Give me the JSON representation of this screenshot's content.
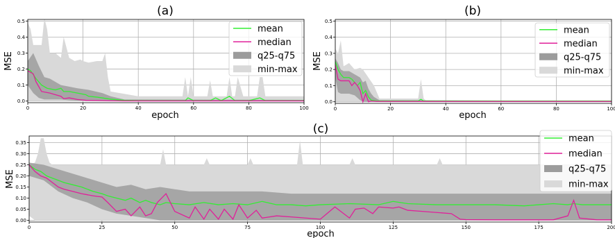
{
  "chart_data": [
    {
      "type": "line",
      "title": "(a)",
      "xlabel": "epoch",
      "ylabel": "MSE",
      "xlim": [
        0,
        100
      ],
      "ylim": [
        -0.01,
        0.51
      ],
      "xticks": [
        0,
        20,
        40,
        60,
        80,
        100
      ],
      "yticks": [
        0.0,
        0.1,
        0.2,
        0.3,
        0.4,
        0.5
      ],
      "ytick_labels": [
        "0.0",
        "0.1",
        "0.2",
        "0.3",
        "0.4",
        "0.5"
      ],
      "grid": true,
      "legend_position": "top-right",
      "legend": [
        "mean",
        "median",
        "q25-q75",
        "min-max"
      ],
      "series": [
        {
          "name": "mean",
          "color": "#33ee33",
          "x": [
            0,
            1,
            3,
            5,
            7,
            10,
            12,
            13,
            15,
            18,
            21,
            22,
            25,
            30,
            35,
            40,
            57,
            58,
            60,
            62,
            66,
            68,
            70,
            73,
            75,
            77,
            80,
            84,
            86,
            90,
            100
          ],
          "y": [
            0.2,
            0.19,
            0.14,
            0.1,
            0.08,
            0.07,
            0.08,
            0.06,
            0.06,
            0.05,
            0.04,
            0.03,
            0.025,
            0.012,
            0.005,
            0.003,
            0.003,
            0.02,
            0.003,
            0.003,
            0.003,
            0.02,
            0.003,
            0.03,
            0.003,
            0.003,
            0.003,
            0.02,
            0.003,
            0.003,
            0.003
          ]
        },
        {
          "name": "median",
          "color": "#e0209a",
          "x": [
            0,
            2,
            3,
            5,
            8,
            10,
            12,
            13,
            15,
            18,
            21,
            25,
            30,
            35,
            100
          ],
          "y": [
            0.19,
            0.17,
            0.12,
            0.06,
            0.05,
            0.04,
            0.03,
            0.015,
            0.02,
            0.01,
            0.005,
            0.004,
            0.002,
            0.001,
            0.001
          ]
        }
      ],
      "band_q25_q75": {
        "name": "q25-q75",
        "color": "#9c9c9c",
        "x": [
          0,
          2,
          4,
          6,
          8,
          10,
          12,
          15,
          18,
          22,
          27,
          30,
          35,
          100
        ],
        "lower": [
          0.1,
          0.05,
          0.02,
          0.01,
          0.01,
          0.01,
          0.01,
          0.005,
          0.003,
          0.003,
          0.002,
          0.002,
          0.001,
          0.0
        ],
        "upper": [
          0.25,
          0.3,
          0.22,
          0.15,
          0.14,
          0.12,
          0.1,
          0.09,
          0.08,
          0.07,
          0.05,
          0.03,
          0.01,
          0.008
        ]
      },
      "band_min_max": {
        "name": "min-max",
        "color": "#d9d9d9",
        "x": [
          0,
          1,
          2,
          5,
          6,
          7,
          8,
          10,
          12,
          13,
          15,
          17,
          19,
          20,
          22,
          25,
          27,
          28,
          29,
          30,
          40,
          56,
          57,
          58,
          59,
          60,
          61,
          65,
          66,
          67,
          68,
          70,
          72,
          73,
          74,
          75,
          76,
          78,
          82,
          83,
          84,
          85,
          86,
          100
        ],
        "lower": [
          0,
          0,
          0,
          0,
          0,
          0,
          0,
          0,
          0,
          0,
          0,
          0,
          0,
          0,
          0,
          0,
          0,
          0,
          0,
          0,
          0,
          0,
          0,
          0,
          0,
          0,
          0,
          0,
          0,
          0,
          0,
          0,
          0,
          0,
          0,
          0,
          0,
          0,
          0,
          0,
          0,
          0,
          0,
          0
        ],
        "upper": [
          0.49,
          0.45,
          0.35,
          0.35,
          0.52,
          0.45,
          0.3,
          0.3,
          0.27,
          0.4,
          0.27,
          0.25,
          0.26,
          0.25,
          0.24,
          0.25,
          0.25,
          0.3,
          0.15,
          0.06,
          0.03,
          0.03,
          0.15,
          0.03,
          0.15,
          0.03,
          0.03,
          0.03,
          0.13,
          0.03,
          0.03,
          0.03,
          0.03,
          0.15,
          0.03,
          0.03,
          0.15,
          0.03,
          0.03,
          0.03,
          0.15,
          0.15,
          0.03,
          0.03
        ]
      }
    },
    {
      "type": "line",
      "title": "(b)",
      "xlabel": "epoch",
      "ylabel": "MSE",
      "xlim": [
        0,
        100
      ],
      "ylim": [
        -0.01,
        0.51
      ],
      "xticks": [
        0,
        20,
        40,
        60,
        80,
        100
      ],
      "yticks": [
        0.0,
        0.1,
        0.2,
        0.3,
        0.4,
        0.5
      ],
      "ytick_labels": [
        "0.0",
        "0.1",
        "0.2",
        "0.3",
        "0.4",
        "0.5"
      ],
      "grid": true,
      "legend_position": "top-right",
      "legend": [
        "mean",
        "median",
        "q25-q75",
        "min-max"
      ],
      "series": [
        {
          "name": "mean",
          "color": "#33ee33",
          "x": [
            0,
            1,
            2,
            3,
            5,
            6,
            7,
            8,
            9,
            10,
            11,
            12,
            13,
            15,
            30,
            31,
            32,
            33,
            100
          ],
          "y": [
            0.25,
            0.2,
            0.17,
            0.15,
            0.15,
            0.14,
            0.12,
            0.1,
            0.12,
            0.05,
            0.07,
            0.03,
            0.01,
            0.005,
            0.005,
            0.015,
            0.005,
            0.005,
            0.005
          ]
        },
        {
          "name": "median",
          "color": "#e0209a",
          "x": [
            0,
            1,
            2,
            3,
            5,
            6,
            7,
            8,
            9,
            10,
            11,
            12,
            13,
            15,
            100
          ],
          "y": [
            0.23,
            0.14,
            0.13,
            0.13,
            0.13,
            0.1,
            0.12,
            0.1,
            0.07,
            0.0,
            0.05,
            0.0,
            0.005,
            0.002,
            0.002
          ]
        }
      ],
      "band_q25_q75": {
        "name": "q25-q75",
        "color": "#9c9c9c",
        "x": [
          0,
          1,
          2,
          3,
          5,
          7,
          9,
          10,
          11,
          12,
          13,
          14,
          16,
          100
        ],
        "lower": [
          0.15,
          0.06,
          0.05,
          0.05,
          0.05,
          0.04,
          0.01,
          0.0,
          0.0,
          0.0,
          0.0,
          0.0,
          0.0,
          0.0
        ],
        "upper": [
          0.27,
          0.24,
          0.2,
          0.19,
          0.19,
          0.17,
          0.15,
          0.12,
          0.13,
          0.08,
          0.05,
          0.03,
          0.01,
          0.005
        ]
      },
      "band_min_max": {
        "name": "min-max",
        "color": "#d9d9d9",
        "x": [
          0,
          1,
          2,
          3,
          5,
          7,
          9,
          10,
          12,
          14,
          16,
          30,
          31,
          32,
          33,
          100
        ],
        "lower": [
          0,
          0,
          0,
          0,
          0,
          0,
          0,
          0,
          0,
          0,
          0,
          0,
          0,
          0,
          0,
          0
        ],
        "upper": [
          0.33,
          0.3,
          0.38,
          0.22,
          0.24,
          0.2,
          0.21,
          0.2,
          0.15,
          0.1,
          0.02,
          0.02,
          0.14,
          0.02,
          0.005,
          0.005
        ]
      }
    },
    {
      "type": "line",
      "title": "(c)",
      "xlabel": "epoch",
      "ylabel": "MSE",
      "xlim": [
        0,
        200
      ],
      "ylim": [
        -0.008,
        0.38
      ],
      "xticks": [
        0,
        25,
        50,
        75,
        100,
        125,
        150,
        175,
        200
      ],
      "yticks": [
        0.0,
        0.05,
        0.1,
        0.15,
        0.2,
        0.25,
        0.3,
        0.35
      ],
      "ytick_labels": [
        "0.00",
        "0.05",
        "0.10",
        "0.15",
        "0.20",
        "0.25",
        "0.30",
        "0.35"
      ],
      "grid": true,
      "legend_position": "top-right",
      "legend": [
        "mean",
        "median",
        "q25-q75",
        "min-max"
      ],
      "series": [
        {
          "name": "mean",
          "color": "#33ee33",
          "x": [
            0,
            2,
            4,
            6,
            8,
            10,
            12,
            15,
            18,
            20,
            22,
            25,
            27,
            30,
            33,
            35,
            38,
            40,
            42,
            45,
            47,
            50,
            55,
            60,
            65,
            70,
            75,
            80,
            85,
            90,
            95,
            100,
            110,
            120,
            125,
            130,
            140,
            150,
            160,
            170,
            175,
            180,
            185,
            187,
            190,
            195,
            200
          ],
          "y": [
            0.25,
            0.23,
            0.22,
            0.2,
            0.19,
            0.18,
            0.17,
            0.16,
            0.15,
            0.14,
            0.13,
            0.12,
            0.11,
            0.1,
            0.09,
            0.1,
            0.08,
            0.09,
            0.08,
            0.07,
            0.08,
            0.075,
            0.07,
            0.08,
            0.07,
            0.075,
            0.07,
            0.085,
            0.07,
            0.07,
            0.065,
            0.07,
            0.075,
            0.07,
            0.085,
            0.075,
            0.07,
            0.07,
            0.07,
            0.065,
            0.07,
            0.075,
            0.07,
            0.075,
            0.07,
            0.07,
            0.07
          ]
        },
        {
          "name": "median",
          "color": "#e0209a",
          "x": [
            0,
            2,
            4,
            6,
            8,
            10,
            12,
            15,
            18,
            20,
            22,
            25,
            27,
            30,
            33,
            35,
            38,
            40,
            42,
            44,
            47,
            50,
            55,
            57,
            60,
            62,
            65,
            67,
            70,
            72,
            75,
            78,
            80,
            85,
            90,
            95,
            100,
            105,
            110,
            112,
            115,
            118,
            120,
            125,
            127,
            130,
            135,
            140,
            145,
            148,
            150,
            160,
            170,
            180,
            185,
            187,
            189,
            195,
            200
          ],
          "y": [
            0.25,
            0.22,
            0.2,
            0.19,
            0.17,
            0.15,
            0.14,
            0.13,
            0.12,
            0.115,
            0.11,
            0.105,
            0.08,
            0.04,
            0.05,
            0.02,
            0.06,
            0.02,
            0.03,
            0.08,
            0.12,
            0.04,
            0.01,
            0.06,
            0.005,
            0.05,
            0.005,
            0.05,
            0.005,
            0.07,
            0.01,
            0.045,
            0.01,
            0.02,
            0.015,
            0.01,
            0.005,
            0.06,
            0.01,
            0.05,
            0.055,
            0.03,
            0.06,
            0.055,
            0.06,
            0.045,
            0.04,
            0.035,
            0.03,
            0.005,
            0.003,
            0.002,
            0.002,
            0.002,
            0.02,
            0.09,
            0.01,
            0.002,
            0.002
          ]
        }
      ],
      "band_q25_q75": {
        "name": "q25-q75",
        "color": "#9c9c9c",
        "x": [
          0,
          5,
          10,
          15,
          20,
          25,
          30,
          35,
          40,
          45,
          50,
          55,
          60,
          70,
          80,
          90,
          100,
          110,
          120,
          130,
          140,
          150,
          160,
          170,
          180,
          190,
          200
        ],
        "lower": [
          0.2,
          0.18,
          0.13,
          0.1,
          0.08,
          0.05,
          0.03,
          0.02,
          0.01,
          0.0,
          0.0,
          0.0,
          0.0,
          0.0,
          0.0,
          0.0,
          0.0,
          0.0,
          0.0,
          0.0,
          0.0,
          0.0,
          0.0,
          0.0,
          0.0,
          0.0,
          0.0
        ],
        "upper": [
          0.26,
          0.25,
          0.23,
          0.21,
          0.19,
          0.17,
          0.15,
          0.16,
          0.14,
          0.15,
          0.14,
          0.13,
          0.13,
          0.13,
          0.13,
          0.12,
          0.12,
          0.12,
          0.12,
          0.12,
          0.12,
          0.12,
          0.12,
          0.12,
          0.12,
          0.12,
          0.12
        ]
      },
      "band_min_max": {
        "name": "min-max",
        "color": "#d9d9d9",
        "x": [
          0,
          2,
          3,
          4,
          5,
          6,
          7,
          8,
          10,
          20,
          40,
          45,
          46,
          47,
          48,
          60,
          61,
          62,
          75,
          76,
          77,
          92,
          93,
          94,
          110,
          111,
          112,
          140,
          141,
          142,
          200
        ],
        "lower": [
          0.02,
          0.0,
          0.0,
          0.0,
          0.0,
          0.0,
          0.0,
          0.0,
          0.0,
          0.0,
          0.0,
          0.0,
          0.0,
          0.0,
          0.0,
          0.0,
          0.0,
          0.0,
          0.0,
          0.0,
          0.0,
          0.0,
          0.0,
          0.0,
          0.0,
          0.0,
          0.0,
          0.0,
          0.0,
          0.0,
          0.0
        ],
        "upper": [
          0.25,
          0.26,
          0.3,
          0.37,
          0.37,
          0.3,
          0.26,
          0.25,
          0.25,
          0.25,
          0.25,
          0.25,
          0.32,
          0.25,
          0.25,
          0.25,
          0.28,
          0.25,
          0.25,
          0.28,
          0.25,
          0.25,
          0.36,
          0.25,
          0.25,
          0.28,
          0.25,
          0.25,
          0.28,
          0.25,
          0.25
        ]
      }
    }
  ]
}
